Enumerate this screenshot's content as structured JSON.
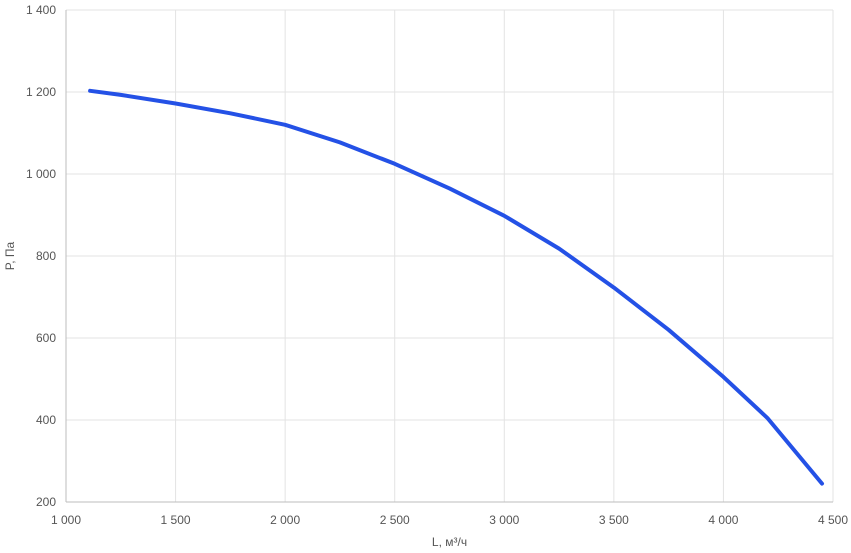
{
  "chart_data": {
    "type": "line",
    "xlabel": "L, м³/ч",
    "ylabel": "P, Па",
    "xlim": [
      1000,
      4500
    ],
    "ylim": [
      200,
      1400
    ],
    "x_ticks": [
      1000,
      1500,
      2000,
      2500,
      3000,
      3500,
      4000,
      4500
    ],
    "x_tick_labels": [
      "1 000",
      "1 500",
      "2 000",
      "2 500",
      "3 000",
      "3 500",
      "4 000",
      "4 500"
    ],
    "y_ticks": [
      200,
      400,
      600,
      800,
      1000,
      1200,
      1400
    ],
    "y_tick_labels": [
      "200",
      "400",
      "600",
      "800",
      "1 000",
      "1 200",
      "1 400"
    ],
    "grid": true,
    "series": [
      {
        "color": "#2451e6",
        "x": [
          1110,
          1250,
          1500,
          1750,
          2000,
          2250,
          2500,
          2750,
          3000,
          3250,
          3500,
          3750,
          4000,
          4200,
          4450
        ],
        "y": [
          1203,
          1193,
          1172,
          1148,
          1120,
          1077,
          1025,
          965,
          898,
          818,
          723,
          620,
          505,
          405,
          245
        ]
      }
    ]
  }
}
